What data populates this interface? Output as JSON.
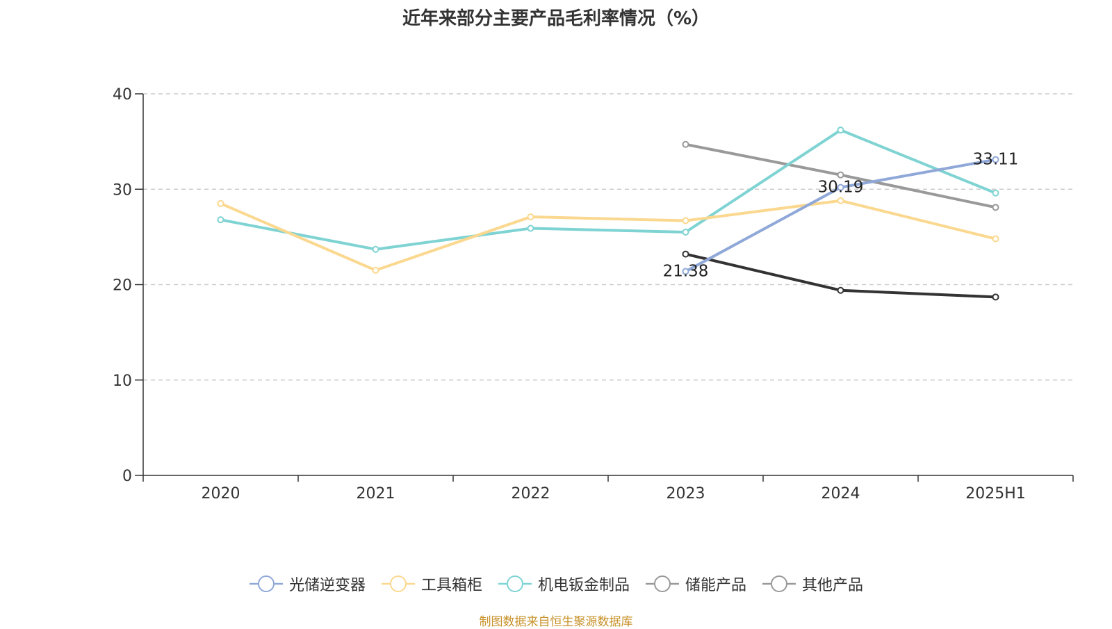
{
  "chart_data": {
    "type": "line",
    "title": "近年来部分主要产品毛利率情况（%）",
    "categories": [
      "2020",
      "2021",
      "2022",
      "2023",
      "2024",
      "2025H1"
    ],
    "ylim": [
      0,
      40
    ],
    "yticks": [
      0,
      10,
      20,
      30,
      40
    ],
    "grid": true,
    "legend_position": "bottom",
    "series": [
      {
        "name": "光储逆变器",
        "color": "#8fa8d8",
        "values": [
          null,
          null,
          null,
          21.38,
          30.19,
          33.11
        ],
        "labels": [
          null,
          null,
          null,
          "21.38",
          "30.19",
          "33.11"
        ]
      },
      {
        "name": "工具箱柜",
        "color": "#fbd88f",
        "values": [
          28.5,
          21.5,
          27.1,
          26.7,
          28.8,
          24.8
        ]
      },
      {
        "name": "机电钣金制品",
        "color": "#7fd3d3",
        "values": [
          26.8,
          23.7,
          25.9,
          25.5,
          36.2,
          29.6
        ]
      },
      {
        "name": "储能产品",
        "color": "#999999",
        "values": [
          null,
          null,
          null,
          34.7,
          31.5,
          28.1
        ]
      },
      {
        "name": "其他产品",
        "color": "#333333",
        "legend_color": "#999999",
        "values": [
          null,
          null,
          null,
          23.2,
          19.4,
          18.7
        ]
      }
    ]
  },
  "source_note": "制图数据来自恒生聚源数据库"
}
